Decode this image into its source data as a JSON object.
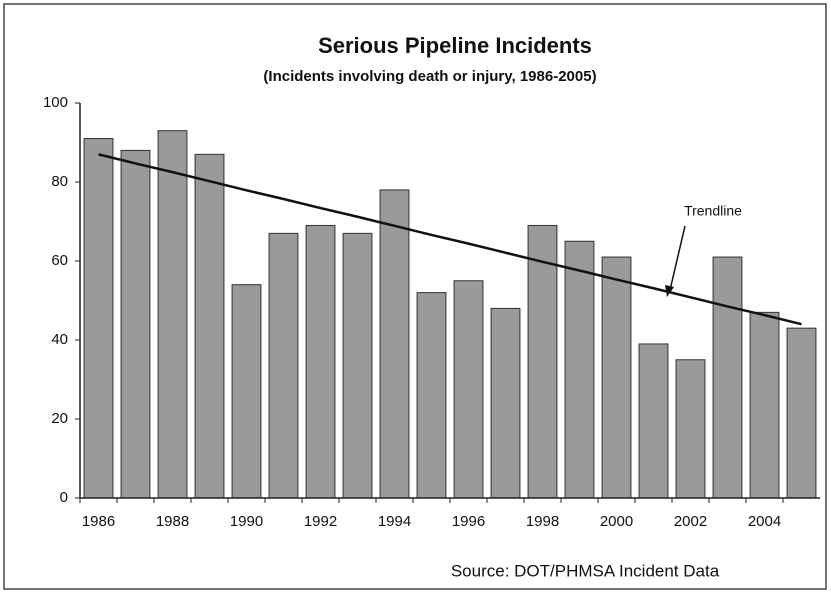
{
  "chart_data": {
    "type": "bar",
    "title": "Serious Pipeline Incidents",
    "subtitle": "(Incidents involving death or injury, 1986-2005)",
    "source": "Source:  DOT/PHMSA Incident Data",
    "categories": [
      "1986",
      null,
      "1988",
      null,
      "1990",
      null,
      "1992",
      null,
      "1994",
      null,
      "1996",
      null,
      "1998",
      null,
      "2000",
      null,
      "2002",
      null,
      "2004",
      null
    ],
    "values": [
      91,
      88,
      93,
      87,
      54,
      67,
      69,
      67,
      78,
      52,
      55,
      48,
      69,
      65,
      61,
      39,
      35,
      61,
      47,
      43
    ],
    "color": "#9a9a9a",
    "trendline": {
      "label": "Trendline",
      "values": [
        87,
        84.7,
        82.5,
        80.2,
        77.9,
        75.7,
        73.4,
        71.2,
        68.9,
        66.6,
        64.4,
        62.1,
        59.8,
        57.6,
        55.3,
        53.1,
        50.8,
        48.5,
        46.3,
        44
      ]
    },
    "ylim": [
      0,
      100
    ],
    "yticks": [
      0,
      20,
      40,
      60,
      80,
      100
    ],
    "grid": false
  }
}
